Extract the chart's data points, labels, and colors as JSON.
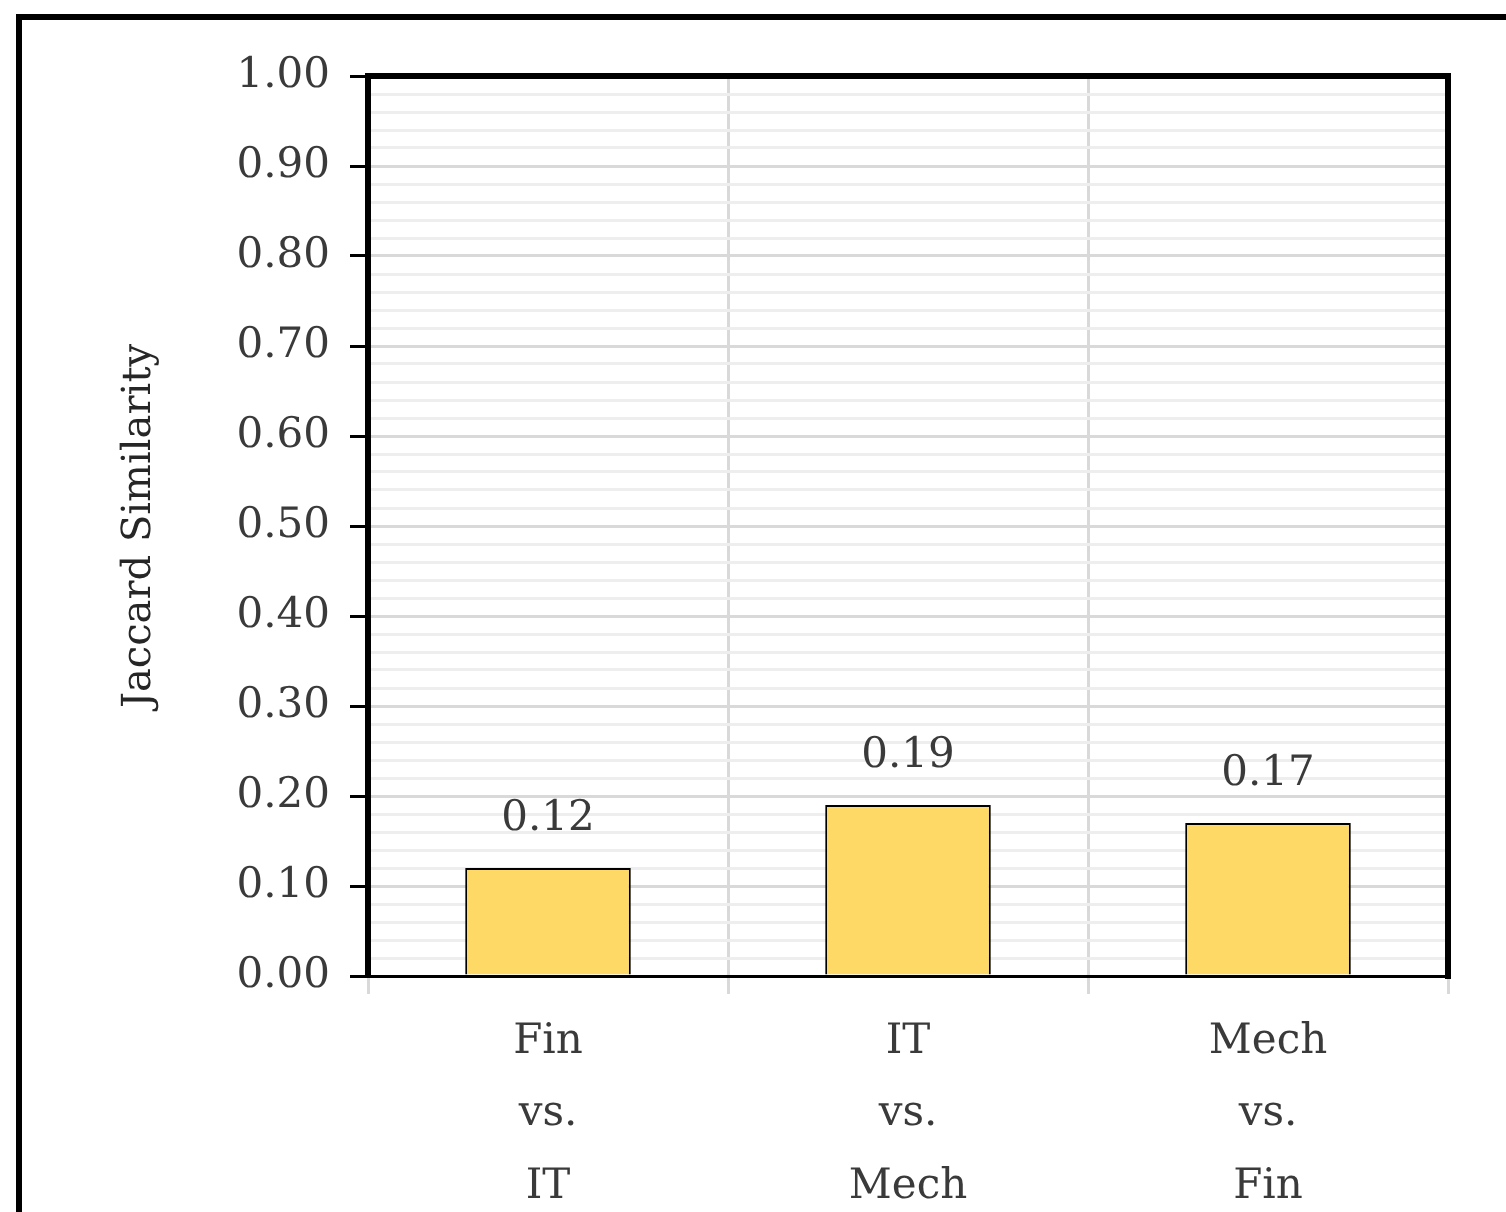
{
  "chart_data": {
    "type": "bar",
    "categories": [
      "Fin vs. IT",
      "IT vs. Mech",
      "Mech vs. Fin"
    ],
    "values": [
      0.12,
      0.19,
      0.17
    ],
    "color": "#ffd966",
    "ylabel": "Jaccard Similarity",
    "ylim": [
      0,
      1
    ],
    "yticks": [
      {
        "value": 0,
        "label": "0.00"
      },
      {
        "value": 0.02,
        "label": null
      },
      {
        "value": 0.04,
        "label": null
      },
      {
        "value": 0.06,
        "label": null
      },
      {
        "value": 0.08,
        "label": null
      },
      {
        "value": 0.1,
        "label": "0.10"
      },
      {
        "value": 0.12,
        "label": null
      },
      {
        "value": 0.14,
        "label": null
      },
      {
        "value": 0.16,
        "label": null
      },
      {
        "value": 0.18,
        "label": null
      },
      {
        "value": 0.2,
        "label": "0.20"
      },
      {
        "value": 0.22,
        "label": null
      },
      {
        "value": 0.24,
        "label": null
      },
      {
        "value": 0.26,
        "label": null
      },
      {
        "value": 0.28,
        "label": null
      },
      {
        "value": 0.3,
        "label": "0.30"
      },
      {
        "value": 0.32,
        "label": null
      },
      {
        "value": 0.34,
        "label": null
      },
      {
        "value": 0.36,
        "label": null
      },
      {
        "value": 0.38,
        "label": null
      },
      {
        "value": 0.4,
        "label": "0.40"
      },
      {
        "value": 0.42,
        "label": null
      },
      {
        "value": 0.44,
        "label": null
      },
      {
        "value": 0.46,
        "label": null
      },
      {
        "value": 0.48,
        "label": null
      },
      {
        "value": 0.5,
        "label": "0.50"
      },
      {
        "value": 0.52,
        "label": null
      },
      {
        "value": 0.54,
        "label": null
      },
      {
        "value": 0.56,
        "label": null
      },
      {
        "value": 0.58,
        "label": null
      },
      {
        "value": 0.6,
        "label": "0.60"
      },
      {
        "value": 0.62,
        "label": null
      },
      {
        "value": 0.64,
        "label": null
      },
      {
        "value": 0.66,
        "label": null
      },
      {
        "value": 0.68,
        "label": null
      },
      {
        "value": 0.7,
        "label": "0.70"
      },
      {
        "value": 0.72,
        "label": null
      },
      {
        "value": 0.74,
        "label": null
      },
      {
        "value": 0.76,
        "label": null
      },
      {
        "value": 0.78,
        "label": null
      },
      {
        "value": 0.8,
        "label": "0.80"
      },
      {
        "value": 0.82,
        "label": null
      },
      {
        "value": 0.84,
        "label": null
      },
      {
        "value": 0.86,
        "label": null
      },
      {
        "value": 0.88,
        "label": null
      },
      {
        "value": 0.9,
        "label": "0.90"
      },
      {
        "value": 0.92,
        "label": null
      },
      {
        "value": 0.94,
        "label": null
      },
      {
        "value": 0.96,
        "label": null
      },
      {
        "value": 0.98,
        "label": null
      },
      {
        "value": 1,
        "label": "1.00"
      }
    ],
    "grid": true,
    "data_labels": true
  }
}
